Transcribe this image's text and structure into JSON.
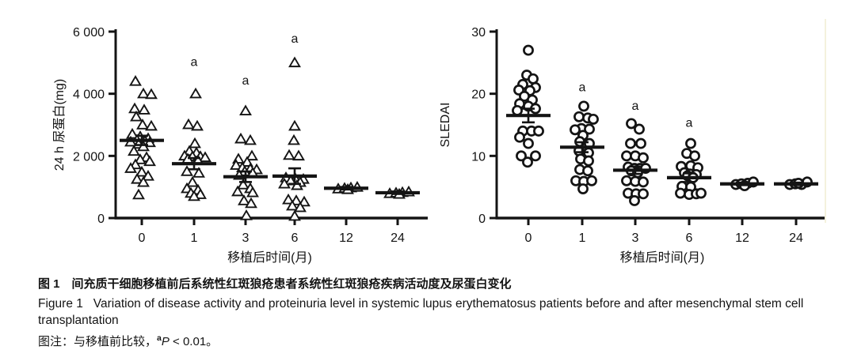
{
  "figure": {
    "caption_zh": "图 1　间充质干细胞移植前后系统性红斑狼疮患者系统性红斑狼疮疾病活动度及尿蛋白变化",
    "caption_en_line1": "Figure 1   Variation of disease activity and proteinuria level in systemic lupus erythematosus patients before and after mesenchymal stem cell",
    "caption_en_line2": "transplantation",
    "note_prefix": "图注：与移植前比较，",
    "note_sup": "a",
    "note_italic": "P",
    "note_rest": " < 0.01。"
  },
  "colors": {
    "marker": "#141414",
    "axis": "#141414",
    "background": "#ffffff"
  },
  "chart_data": [
    {
      "type": "scatter",
      "marker": "triangle-open",
      "title": "",
      "ylabel": "24 h 尿蛋白(mg)",
      "xlabel": "移植后时间(月)",
      "ylim": [
        0,
        6000
      ],
      "yticks": [
        0,
        2000,
        4000,
        6000
      ],
      "ytick_labels": [
        "0",
        "2 000",
        "4 000",
        "6 000"
      ],
      "categories": [
        "0",
        "1",
        "3",
        "6",
        "12",
        "24"
      ],
      "legend": "none",
      "grid": false,
      "annotations": [
        {
          "group": 1,
          "text": "a",
          "y": 4900
        },
        {
          "group": 2,
          "text": "a",
          "y": 4300
        },
        {
          "group": 3,
          "text": "a",
          "y": 5650
        }
      ],
      "groups": [
        {
          "category": "0",
          "mean": 2500,
          "sem": 150,
          "points": [
            [
              -8,
              4400
            ],
            [
              2,
              4000
            ],
            [
              12,
              3980
            ],
            [
              -9,
              3520
            ],
            [
              3,
              3480
            ],
            [
              -7,
              3260
            ],
            [
              1,
              3000
            ],
            [
              12,
              2960
            ],
            [
              -12,
              2700
            ],
            [
              -2,
              2620
            ],
            [
              8,
              2560
            ],
            [
              -6,
              2510
            ],
            [
              4,
              2480
            ],
            [
              -14,
              2450
            ],
            [
              10,
              2430
            ],
            [
              -4,
              2380
            ],
            [
              2,
              2300
            ],
            [
              -10,
              2150
            ],
            [
              6,
              1950
            ],
            [
              -2,
              1880
            ],
            [
              10,
              1820
            ],
            [
              -8,
              1720
            ],
            [
              -14,
              1600
            ],
            [
              0,
              1480
            ],
            [
              8,
              1350
            ],
            [
              -6,
              1250
            ],
            [
              2,
              1150
            ],
            [
              -4,
              750
            ]
          ]
        },
        {
          "category": "1",
          "mean": 1750,
          "sem": 180,
          "points": [
            [
              2,
              4000
            ],
            [
              -7,
              3010
            ],
            [
              4,
              2960
            ],
            [
              1,
              2400
            ],
            [
              -6,
              2150
            ],
            [
              3,
              2100
            ],
            [
              -12,
              2000
            ],
            [
              -2,
              1980
            ],
            [
              8,
              1980
            ],
            [
              14,
              1950
            ],
            [
              -8,
              1900
            ],
            [
              5,
              1850
            ],
            [
              -9,
              1500
            ],
            [
              6,
              1450
            ],
            [
              -2,
              1150
            ],
            [
              -9,
              950
            ],
            [
              5,
              900
            ],
            [
              -4,
              800
            ],
            [
              8,
              760
            ],
            [
              0,
              700
            ]
          ]
        },
        {
          "category": "3",
          "mean": 1330,
          "sem": 170,
          "points": [
            [
              0,
              3450
            ],
            [
              -6,
              2550
            ],
            [
              6,
              2500
            ],
            [
              8,
              2000
            ],
            [
              -9,
              1900
            ],
            [
              2,
              1800
            ],
            [
              -12,
              1700
            ],
            [
              -4,
              1620
            ],
            [
              6,
              1580
            ],
            [
              14,
              1560
            ],
            [
              -1,
              1500
            ],
            [
              9,
              1450
            ],
            [
              -8,
              1380
            ],
            [
              -3,
              1070
            ],
            [
              6,
              950
            ],
            [
              -10,
              850
            ],
            [
              9,
              820
            ],
            [
              -2,
              560
            ],
            [
              7,
              470
            ],
            [
              1,
              80
            ]
          ]
        },
        {
          "category": "6",
          "mean": 1350,
          "sem": 250,
          "points": [
            [
              0,
              5000
            ],
            [
              0,
              2960
            ],
            [
              -1,
              2500
            ],
            [
              -7,
              2020
            ],
            [
              5,
              2000
            ],
            [
              -11,
              1300
            ],
            [
              1,
              1260
            ],
            [
              11,
              1250
            ],
            [
              -5,
              1200
            ],
            [
              7,
              1150
            ],
            [
              -13,
              1100
            ],
            [
              3,
              1050
            ],
            [
              -8,
              590
            ],
            [
              2,
              560
            ],
            [
              12,
              520
            ],
            [
              -3,
              390
            ],
            [
              7,
              340
            ],
            [
              0,
              60
            ]
          ]
        },
        {
          "category": "12",
          "mean": 960,
          "sem": 40,
          "points": [
            [
              -10,
              940
            ],
            [
              -2,
              960
            ],
            [
              6,
              975
            ],
            [
              14,
              995
            ],
            [
              2,
              920
            ]
          ]
        },
        {
          "category": "24",
          "mean": 815,
          "sem": 40,
          "points": [
            [
              -10,
              790
            ],
            [
              -2,
              810
            ],
            [
              6,
              825
            ],
            [
              14,
              845
            ],
            [
              2,
              770
            ]
          ]
        }
      ]
    },
    {
      "type": "scatter",
      "marker": "circle-open",
      "title": "",
      "ylabel": "SLEDAI",
      "xlabel": "移植后时间(月)",
      "ylim": [
        0,
        30
      ],
      "yticks": [
        0,
        10,
        20,
        30
      ],
      "ytick_labels": [
        "0",
        "10",
        "20",
        "30"
      ],
      "categories": [
        "0",
        "1",
        "3",
        "6",
        "12",
        "24"
      ],
      "legend": "none",
      "grid": false,
      "annotations": [
        {
          "group": 1,
          "text": "a",
          "y": 20.4
        },
        {
          "group": 2,
          "text": "a",
          "y": 17.4
        },
        {
          "group": 3,
          "text": "a",
          "y": 14.7
        }
      ],
      "groups": [
        {
          "category": "0",
          "mean": 16.5,
          "sem": 1.1,
          "points": [
            [
              0,
              27
            ],
            [
              -2,
              23
            ],
            [
              6,
              22.4
            ],
            [
              -7,
              21.5
            ],
            [
              9,
              21
            ],
            [
              -12,
              20.6
            ],
            [
              2,
              20.5
            ],
            [
              -5,
              19.6
            ],
            [
              5,
              19
            ],
            [
              -11,
              18.4
            ],
            [
              0,
              18
            ],
            [
              9,
              17.6
            ],
            [
              -14,
              17.3
            ],
            [
              -7,
              14
            ],
            [
              4,
              14
            ],
            [
              13,
              14
            ],
            [
              -11,
              13
            ],
            [
              0,
              12
            ],
            [
              -9,
              10
            ],
            [
              9,
              10
            ],
            [
              -1,
              9
            ]
          ]
        },
        {
          "category": "1",
          "mean": 11.4,
          "sem": 0.8,
          "points": [
            [
              2,
              18
            ],
            [
              -4,
              16.3
            ],
            [
              7,
              16.1
            ],
            [
              14,
              15.9
            ],
            [
              -1,
              14.4
            ],
            [
              9,
              14.3
            ],
            [
              -9,
              14.2
            ],
            [
              1,
              13.3
            ],
            [
              -3,
              12.3
            ],
            [
              9,
              12
            ],
            [
              -4,
              10.8
            ],
            [
              8,
              10.5
            ],
            [
              -2,
              9.5
            ],
            [
              8,
              9.2
            ],
            [
              -3,
              7.8
            ],
            [
              7,
              7.6
            ],
            [
              -8,
              6
            ],
            [
              2,
              5.9
            ],
            [
              12,
              6
            ],
            [
              1,
              4.7
            ]
          ]
        },
        {
          "category": "3",
          "mean": 7.7,
          "sem": 0.6,
          "points": [
            [
              -5,
              15.2
            ],
            [
              5,
              14.3
            ],
            [
              -6,
              12
            ],
            [
              7,
              12
            ],
            [
              -11,
              10
            ],
            [
              0,
              10
            ],
            [
              10,
              9.7
            ],
            [
              -9,
              8.2
            ],
            [
              -1,
              8
            ],
            [
              6,
              8
            ],
            [
              13,
              8
            ],
            [
              -5,
              7.6
            ],
            [
              3,
              7.3
            ],
            [
              -11,
              6
            ],
            [
              0,
              5.9
            ],
            [
              10,
              5.8
            ],
            [
              -9,
              4
            ],
            [
              1,
              3.9
            ],
            [
              10,
              3.9
            ],
            [
              -1,
              2.8
            ]
          ]
        },
        {
          "category": "6",
          "mean": 6.5,
          "sem": 0.7,
          "points": [
            [
              2,
              12
            ],
            [
              -3,
              10.4
            ],
            [
              7,
              10
            ],
            [
              -10,
              8.3
            ],
            [
              2,
              8.4
            ],
            [
              11,
              8.1
            ],
            [
              -6,
              7.3
            ],
            [
              1,
              7.1
            ],
            [
              9,
              7
            ],
            [
              -2,
              6.8
            ],
            [
              5,
              6.5
            ],
            [
              -9,
              5.1
            ],
            [
              2,
              5
            ],
            [
              -11,
              4
            ],
            [
              0,
              3.8
            ],
            [
              9,
              3.9
            ],
            [
              15,
              4
            ]
          ]
        },
        {
          "category": "12",
          "mean": 5.5,
          "sem": 0.2,
          "points": [
            [
              -8,
              5.4
            ],
            [
              -1,
              5.5
            ],
            [
              7,
              5.6
            ],
            [
              14,
              5.8
            ],
            [
              3,
              5.2
            ]
          ]
        },
        {
          "category": "24",
          "mean": 5.5,
          "sem": 0.2,
          "points": [
            [
              -8,
              5.4
            ],
            [
              -1,
              5.5
            ],
            [
              7,
              5.4
            ],
            [
              14,
              5.8
            ],
            [
              3,
              5.6
            ]
          ]
        }
      ]
    }
  ]
}
